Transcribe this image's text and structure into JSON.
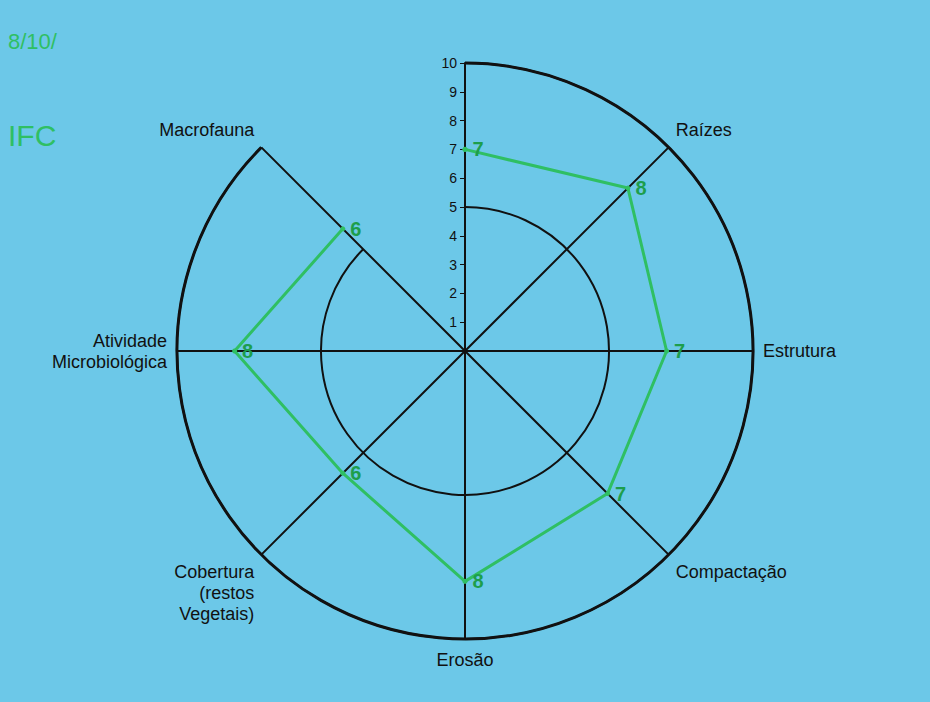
{
  "chart_data": {
    "type": "radar",
    "categories": [
      null,
      "Raízes",
      "Estrutura",
      "Compactação",
      "Erosão",
      "Cobertura (restos Vegetais)",
      "Atividade Microbiológica",
      "Macrofauna"
    ],
    "values": [
      7,
      8,
      7,
      7,
      8,
      6,
      8,
      6
    ],
    "color": "#2fbf63",
    "ylim": [
      0,
      10
    ],
    "yticks": [
      1,
      2,
      3,
      4,
      5,
      6,
      7,
      8,
      9,
      10
    ],
    "data_labels": true,
    "annotations": [
      "8/10/",
      "IFC"
    ]
  }
}
